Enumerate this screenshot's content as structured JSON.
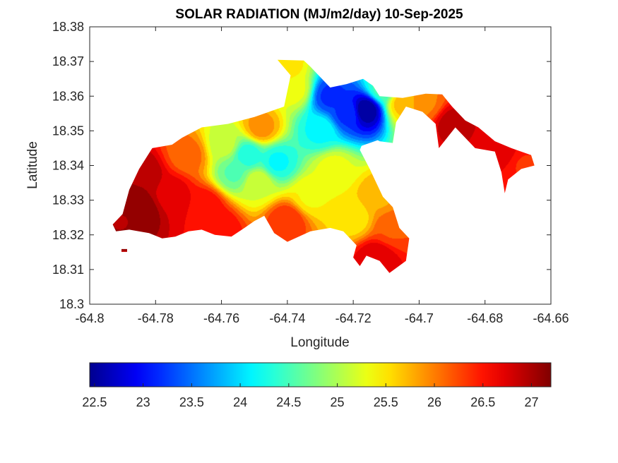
{
  "chart_data": {
    "type": "heatmap",
    "title": "SOLAR RADIATION (MJ/m2/day) 10-Sep-2025",
    "xlabel": "Longitude",
    "ylabel": "Latitude",
    "xlim": [
      -64.8,
      -64.66
    ],
    "ylim": [
      18.3,
      18.38
    ],
    "x_ticks": [
      -64.8,
      -64.78,
      -64.76,
      -64.74,
      -64.72,
      -64.7,
      -64.68,
      -64.66
    ],
    "x_tick_labels": [
      "-64.8",
      "-64.78",
      "-64.76",
      "-64.74",
      "-64.72",
      "-64.7",
      "-64.68",
      "-64.66"
    ],
    "y_ticks": [
      18.3,
      18.31,
      18.32,
      18.33,
      18.34,
      18.35,
      18.36,
      18.37,
      18.38
    ],
    "y_tick_labels": [
      "18.3",
      "18.31",
      "18.32",
      "18.33",
      "18.34",
      "18.35",
      "18.36",
      "18.37",
      "18.38"
    ],
    "grid": false,
    "colormap": "jet",
    "colorbar": {
      "orientation": "horizontal",
      "location": "bottom",
      "range": [
        22.45,
        27.2
      ],
      "ticks": [
        22.5,
        23,
        23.5,
        24,
        24.5,
        25,
        25.5,
        26,
        26.5,
        27
      ],
      "tick_labels": [
        "22.5",
        "23",
        "23.5",
        "24",
        "24.5",
        "25",
        "25.5",
        "26",
        "26.5",
        "27"
      ]
    },
    "color_stops": [
      "#00008f",
      "#0000ff",
      "#00ffff",
      "#ffff00",
      "#ff0000",
      "#800000"
    ],
    "island_outline": [
      [
        -64.793,
        18.323
      ],
      [
        -64.79,
        18.326
      ],
      [
        -64.788,
        18.333
      ],
      [
        -64.785,
        18.339
      ],
      [
        -64.781,
        18.345
      ],
      [
        -64.775,
        18.346
      ],
      [
        -64.772,
        18.348
      ],
      [
        -64.766,
        18.351
      ],
      [
        -64.758,
        18.352
      ],
      [
        -64.75,
        18.354
      ],
      [
        -64.744,
        18.356
      ],
      [
        -64.741,
        18.357
      ],
      [
        -64.739,
        18.366
      ],
      [
        -64.743,
        18.3705
      ],
      [
        -64.735,
        18.3703
      ],
      [
        -64.733,
        18.3685
      ],
      [
        -64.727,
        18.3625
      ],
      [
        -64.722,
        18.3635
      ],
      [
        -64.717,
        18.365
      ],
      [
        -64.714,
        18.363
      ],
      [
        -64.712,
        18.36
      ],
      [
        -64.705,
        18.3595
      ],
      [
        -64.698,
        18.3607
      ],
      [
        -64.693,
        18.3605
      ],
      [
        -64.69,
        18.357
      ],
      [
        -64.686,
        18.353
      ],
      [
        -64.682,
        18.351
      ],
      [
        -64.677,
        18.347
      ],
      [
        -64.672,
        18.345
      ],
      [
        -64.666,
        18.343
      ],
      [
        -64.665,
        18.34
      ],
      [
        -64.669,
        18.339
      ],
      [
        -64.673,
        18.336
      ],
      [
        -64.674,
        18.332
      ],
      [
        -64.675,
        18.338
      ],
      [
        -64.677,
        18.344
      ],
      [
        -64.683,
        18.345
      ],
      [
        -64.689,
        18.351
      ],
      [
        -64.694,
        18.345
      ],
      [
        -64.695,
        18.352
      ],
      [
        -64.699,
        18.3555
      ],
      [
        -64.704,
        18.357
      ],
      [
        -64.707,
        18.3525
      ],
      [
        -64.708,
        18.3465
      ],
      [
        -64.712,
        18.347
      ],
      [
        -64.716,
        18.349
      ],
      [
        -64.718,
        18.3445
      ],
      [
        -64.715,
        18.339
      ],
      [
        -64.713,
        18.335
      ],
      [
        -64.711,
        18.331
      ],
      [
        -64.708,
        18.328
      ],
      [
        -64.706,
        18.322
      ],
      [
        -64.703,
        18.319
      ],
      [
        -64.704,
        18.3125
      ],
      [
        -64.709,
        18.309
      ],
      [
        -64.712,
        18.3125
      ],
      [
        -64.716,
        18.314
      ],
      [
        -64.718,
        18.311
      ],
      [
        -64.72,
        18.3135
      ],
      [
        -64.719,
        18.317
      ],
      [
        -64.723,
        18.321
      ],
      [
        -64.727,
        18.322
      ],
      [
        -64.733,
        18.321
      ],
      [
        -64.74,
        18.318
      ],
      [
        -64.744,
        18.3205
      ],
      [
        -64.747,
        18.3255
      ],
      [
        -64.75,
        18.324
      ],
      [
        -64.753,
        18.322
      ],
      [
        -64.757,
        18.3195
      ],
      [
        -64.762,
        18.32
      ],
      [
        -64.766,
        18.3215
      ],
      [
        -64.77,
        18.321
      ],
      [
        -64.774,
        18.3195
      ],
      [
        -64.778,
        18.319
      ],
      [
        -64.782,
        18.3205
      ],
      [
        -64.788,
        18.3215
      ],
      [
        -64.792,
        18.321
      ]
    ],
    "annex_bay_outline": [
      [
        -64.718,
        18.3455
      ],
      [
        -64.712,
        18.3475
      ],
      [
        -64.708,
        18.3475
      ],
      [
        -64.707,
        18.3535
      ],
      [
        -64.71,
        18.3545
      ],
      [
        -64.715,
        18.3495
      ],
      [
        -64.717,
        18.3485
      ]
    ],
    "small_islets": [
      [
        -64.7895,
        18.3155
      ],
      [
        -64.6715,
        18.341
      ]
    ],
    "field_anchors": [
      {
        "lon": -64.785,
        "lat": 18.327,
        "v": 27.2
      },
      {
        "lon": -64.784,
        "lat": 18.337,
        "v": 27.0
      },
      {
        "lon": -64.775,
        "lat": 18.332,
        "v": 26.7
      },
      {
        "lon": -64.79,
        "lat": 18.324,
        "v": 27.0
      },
      {
        "lon": -64.77,
        "lat": 18.343,
        "v": 26.1
      },
      {
        "lon": -64.765,
        "lat": 18.328,
        "v": 26.6
      },
      {
        "lon": -64.759,
        "lat": 18.346,
        "v": 25.1
      },
      {
        "lon": -64.752,
        "lat": 18.343,
        "v": 24.3
      },
      {
        "lon": -64.743,
        "lat": 18.341,
        "v": 24.2
      },
      {
        "lon": -64.749,
        "lat": 18.335,
        "v": 25.2
      },
      {
        "lon": -64.756,
        "lat": 18.338,
        "v": 24.6
      },
      {
        "lon": -64.74,
        "lat": 18.324,
        "v": 26.4
      },
      {
        "lon": -64.733,
        "lat": 18.331,
        "v": 25.4
      },
      {
        "lon": -64.726,
        "lat": 18.339,
        "v": 25.3
      },
      {
        "lon": -64.73,
        "lat": 18.35,
        "v": 24.2
      },
      {
        "lon": -64.722,
        "lat": 18.355,
        "v": 23.2
      },
      {
        "lon": -64.716,
        "lat": 18.356,
        "v": 22.5
      },
      {
        "lon": -64.727,
        "lat": 18.36,
        "v": 23.2
      },
      {
        "lon": -64.738,
        "lat": 18.362,
        "v": 25.3
      },
      {
        "lon": -64.741,
        "lat": 18.368,
        "v": 25.6
      },
      {
        "lon": -64.72,
        "lat": 18.325,
        "v": 25.5
      },
      {
        "lon": -64.712,
        "lat": 18.331,
        "v": 25.8
      },
      {
        "lon": -64.708,
        "lat": 18.322,
        "v": 26.2
      },
      {
        "lon": -64.713,
        "lat": 18.313,
        "v": 26.8
      },
      {
        "lon": -64.711,
        "lat": 18.362,
        "v": 24.5
      },
      {
        "lon": -64.705,
        "lat": 18.358,
        "v": 25.7
      },
      {
        "lon": -64.698,
        "lat": 18.358,
        "v": 26.0
      },
      {
        "lon": -64.69,
        "lat": 18.352,
        "v": 26.9
      },
      {
        "lon": -64.675,
        "lat": 18.344,
        "v": 26.7
      },
      {
        "lon": -64.668,
        "lat": 18.34,
        "v": 26.4
      },
      {
        "lon": -64.748,
        "lat": 18.351,
        "v": 25.9
      },
      {
        "lon": -64.761,
        "lat": 18.322,
        "v": 26.6
      }
    ]
  }
}
